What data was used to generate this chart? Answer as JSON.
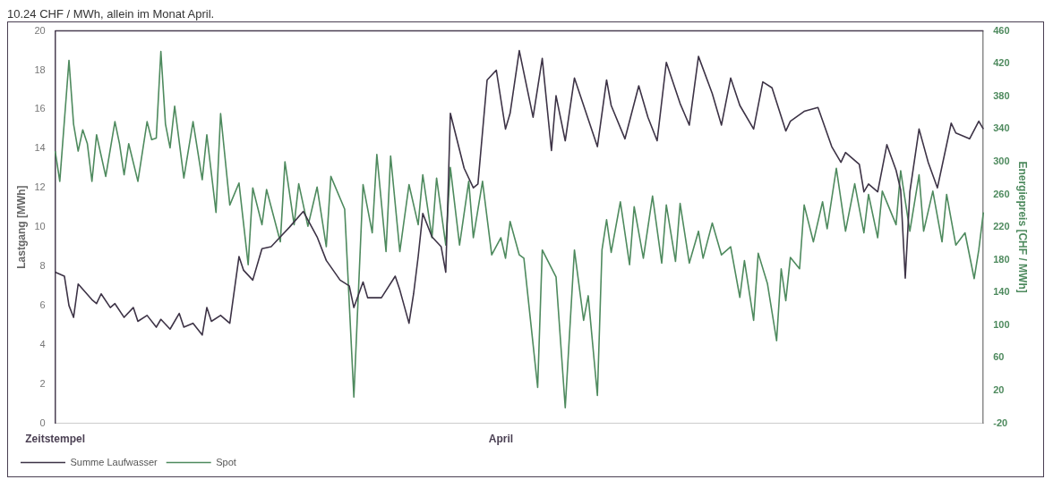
{
  "chart_data": {
    "type": "line",
    "annotations": [
      "10.24 CHF / MWh, allein im Monat April."
    ],
    "ylabel": "Lastgang [MWh]",
    "y2label": "Energiepreis [CHF / MWh]",
    "categories": [
      "Zeitstempel",
      null,
      null,
      null,
      null,
      null,
      null,
      null,
      null,
      null,
      null,
      null,
      null,
      null,
      null,
      null,
      null,
      null,
      null,
      null,
      null,
      null,
      null,
      null,
      null,
      null,
      null,
      null,
      null,
      null,
      null,
      null,
      null,
      null,
      null,
      null,
      null,
      null,
      null,
      null,
      null,
      null,
      null,
      null,
      null,
      null,
      null,
      null,
      null,
      null,
      null,
      null,
      null,
      null,
      null,
      null,
      null,
      null,
      null,
      null,
      null,
      null,
      null,
      null,
      null,
      null,
      null,
      null,
      null,
      null,
      null,
      null,
      null,
      null,
      null,
      null,
      null,
      null,
      null,
      null,
      null,
      null,
      null,
      null,
      null,
      null,
      null,
      null,
      null,
      null,
      null,
      null,
      null,
      null,
      null,
      null,
      null,
      "April",
      null,
      null,
      null,
      null,
      null,
      null,
      null,
      null,
      null,
      null,
      null,
      null,
      null,
      null,
      null,
      null,
      null,
      null,
      null,
      null,
      null,
      null,
      null,
      null,
      null,
      null,
      null,
      null,
      null,
      null,
      null,
      null,
      null,
      null,
      null,
      null,
      null,
      null,
      null,
      null,
      null,
      null,
      null,
      null,
      null,
      null,
      null,
      null,
      null,
      null,
      null,
      null,
      null,
      null,
      null,
      null,
      null,
      null,
      null,
      null,
      null,
      null,
      null,
      null,
      null,
      null,
      null,
      null,
      null,
      null,
      null,
      null,
      null,
      null,
      null,
      null,
      null,
      null,
      null,
      null,
      null,
      null,
      null,
      null,
      null,
      null,
      null,
      null,
      null,
      null,
      null,
      null,
      null,
      null,
      null,
      null,
      null,
      null,
      null,
      null,
      null,
      null,
      null,
      null,
      null
    ],
    "series": [
      {
        "name": "Summe Laufwasser",
        "color": "#3d3346",
        "values": [
          7.7,
          null,
          7.5,
          6.0,
          5.4,
          7.1,
          null,
          null,
          6.3,
          6.1,
          6.6,
          null,
          5.9,
          6.1,
          null,
          5.4,
          null,
          5.9,
          5.2,
          null,
          5.5,
          null,
          4.9,
          5.3,
          null,
          4.8,
          null,
          5.6,
          4.9,
          null,
          5.1,
          null,
          4.5,
          5.9,
          5.2,
          null,
          5.5,
          null,
          5.1,
          null,
          8.5,
          7.8,
          null,
          7.3,
          null,
          8.9,
          null,
          9.0,
          null,
          9.5,
          null,
          10.0,
          null,
          null,
          10.8,
          null,
          null,
          9.5,
          null,
          8.3,
          null,
          null,
          7.3,
          null,
          7.0,
          5.9,
          null,
          7.2,
          6.4,
          null,
          null,
          6.4,
          null,
          null,
          7.5,
          6.8,
          null,
          5.1,
          6.6,
          8.5,
          10.7,
          null,
          9.5,
          null,
          9.0,
          7.7,
          15.8,
          null,
          null,
          13.0,
          null,
          12.0,
          12.2,
          null,
          17.5,
          null,
          18.0,
          null,
          15.0,
          15.8,
          null,
          19.0,
          null,
          null,
          15.6,
          null,
          18.6,
          null,
          13.9,
          16.7,
          null,
          14.4,
          null,
          17.6,
          null,
          null,
          null,
          null,
          14.1,
          null,
          17.5,
          16.2,
          null,
          null,
          14.5,
          null,
          null,
          17.2,
          null,
          15.6,
          null,
          14.4,
          null,
          18.4,
          null,
          null,
          16.3,
          null,
          15.2,
          null,
          18.7,
          null,
          null,
          16.8,
          null,
          15.2,
          null,
          17.6,
          null,
          16.2,
          null,
          null,
          15.0,
          null,
          17.4,
          null,
          17.1,
          null,
          null,
          14.9,
          15.4,
          null,
          null,
          15.9,
          null,
          null,
          16.1,
          null,
          null,
          14.1,
          null,
          13.3,
          13.8,
          null,
          null,
          13.2,
          11.8,
          12.2,
          null,
          11.8,
          null,
          14.2,
          null,
          12.9,
          11.9,
          7.4,
          11.8,
          null,
          15.0,
          null,
          13.3,
          null,
          12.0,
          null,
          null,
          15.3,
          14.8,
          null,
          null,
          14.5,
          null,
          15.4,
          15.0
        ]
      },
      {
        "name": "Spot",
        "color": "#4e8a5e",
        "axis": "y2",
        "values": [
          313,
          276,
          null,
          424,
          346,
          313,
          339,
          322,
          276,
          333,
          null,
          282,
          null,
          349,
          322,
          284,
          322,
          null,
          276,
          null,
          349,
          327,
          329,
          435,
          346,
          317,
          368,
          null,
          280,
          null,
          349,
          null,
          278,
          333,
          null,
          238,
          359,
          null,
          247,
          null,
          274,
          null,
          174,
          268,
          null,
          223,
          266,
          null,
          null,
          202,
          300,
          null,
          223,
          273,
          null,
          221,
          null,
          269,
          null,
          196,
          282,
          null,
          null,
          242,
          null,
          12,
          null,
          272,
          null,
          213,
          309,
          null,
          190,
          307,
          null,
          190,
          null,
          272,
          null,
          223,
          284,
          null,
          207,
          280,
          null,
          198,
          293,
          null,
          198,
          null,
          276,
          207,
          null,
          276,
          null,
          186,
          null,
          207,
          182,
          227,
          null,
          186,
          182,
          null,
          null,
          24,
          192,
          null,
          null,
          159,
          null,
          -1,
          null,
          192,
          null,
          106,
          136,
          null,
          14,
          192,
          229,
          189,
          null,
          251,
          null,
          174,
          245,
          null,
          182,
          null,
          258,
          null,
          176,
          247,
          null,
          178,
          249,
          null,
          176,
          null,
          215,
          182,
          null,
          225,
          null,
          186,
          null,
          196,
          null,
          134,
          179,
          null,
          106,
          188,
          null,
          151,
          null,
          81,
          169,
          130,
          183,
          null,
          169,
          247,
          null,
          202,
          null,
          251,
          218,
          null,
          292,
          null,
          215,
          null,
          273,
          null,
          213,
          260,
          null,
          207,
          264,
          null,
          null,
          223,
          289,
          null,
          215,
          null,
          284,
          215,
          null,
          264,
          null,
          202,
          260,
          null,
          198,
          null,
          213,
          null,
          157,
          192,
          238
        ]
      }
    ],
    "ylim": [
      0,
      20
    ],
    "yticks": [
      0,
      2,
      4,
      6,
      8,
      10,
      12,
      14,
      16,
      18,
      20
    ],
    "y2lim": [
      -20,
      460
    ],
    "y2ticks": [
      -20,
      20,
      60,
      100,
      140,
      180,
      220,
      260,
      300,
      340,
      380,
      420,
      460
    ],
    "grid": false,
    "legend": "bottom"
  }
}
